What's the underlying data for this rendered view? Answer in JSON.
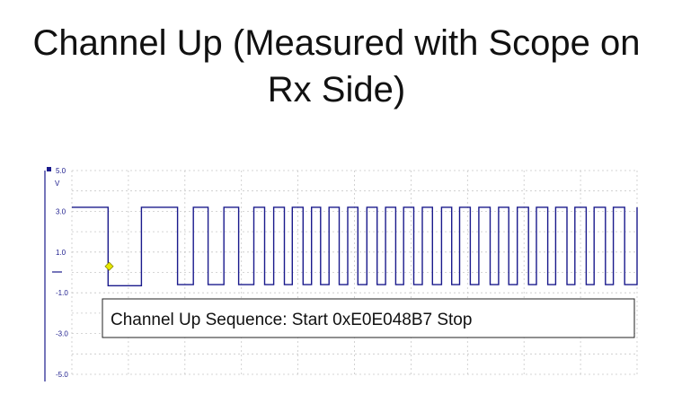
{
  "slide": {
    "title_line1": "Channel Up (Measured with Scope on",
    "title_line2": "Rx Side)"
  },
  "chart_data": {
    "type": "line",
    "title": "",
    "ylabel_unit": "V",
    "ylim": [
      -5.0,
      5.0
    ],
    "yticks": [
      "5.0",
      "3.0",
      "1.0",
      "-1.0",
      "-3.0",
      "-5.0"
    ],
    "grid": true,
    "series": [
      {
        "color": "#1a1a8c",
        "high": 3.2,
        "low": -0.6,
        "idle_low": -0.65,
        "x": [
          0,
          6.4,
          12.3,
          18.7,
          21.5,
          24.1,
          26.9,
          29.5,
          32.2,
          34.1,
          35.7,
          37.6,
          39.0,
          40.9,
          42.4,
          44.0,
          45.5,
          47.3,
          48.8,
          50.6,
          52.2,
          54.0,
          55.5,
          57.3,
          58.7,
          60.5,
          62.0,
          63.8,
          65.4,
          67.2,
          68.6,
          70.5,
          72.0,
          74.0,
          75.5,
          77.3,
          78.8,
          80.8,
          82.2,
          84.2,
          85.6,
          87.6,
          89.0,
          91.0,
          92.4,
          94.4,
          95.8,
          97.8,
          100
        ],
        "levels": [
          "high",
          "idle_low",
          "high",
          "low",
          "high",
          "low",
          "high",
          "low",
          "high",
          "low",
          "high",
          "low",
          "high",
          "low",
          "high",
          "low",
          "high",
          "low",
          "high",
          "low",
          "high",
          "low",
          "high",
          "low",
          "high",
          "low",
          "high",
          "low",
          "high",
          "low",
          "high",
          "low",
          "high",
          "low",
          "high",
          "low",
          "high",
          "low",
          "high",
          "low",
          "high",
          "low",
          "high",
          "low",
          "high",
          "low",
          "high",
          "low",
          "high"
        ]
      }
    ],
    "cursor_marker": {
      "x": 6.6,
      "y": 0.3,
      "color": "#e8e800"
    },
    "annotation": "Channel Up Sequence: Start 0xE0E048B7 Stop"
  }
}
